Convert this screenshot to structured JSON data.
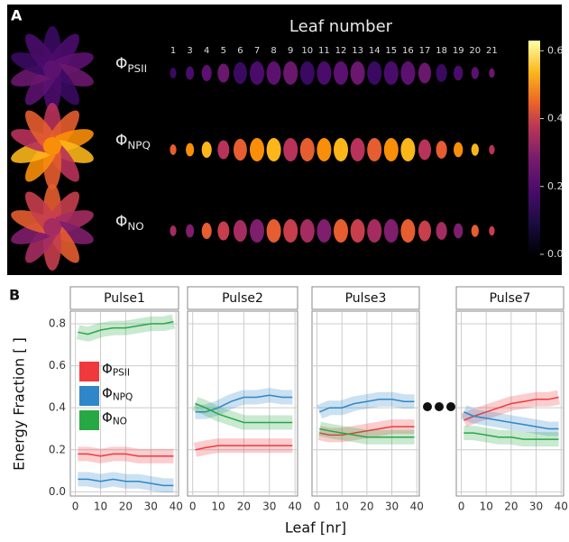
{
  "figure": {
    "label": "A",
    "title": "Leaf number",
    "leaf_numbers": [
      1,
      3,
      4,
      5,
      6,
      7,
      8,
      9,
      10,
      11,
      12,
      13,
      14,
      15,
      16,
      17,
      18,
      19,
      20,
      21
    ],
    "rows": [
      {
        "name": "Φ",
        "subscript": "PSII"
      },
      {
        "name": "Φ",
        "subscript": "NPQ"
      },
      {
        "name": "Φ",
        "subscript": "NO"
      }
    ],
    "colorbar": {
      "lim": [
        0,
        0.63
      ],
      "ticks": [
        {
          "value": 0,
          "label": "0.0"
        },
        0.2,
        0.4,
        0.6
      ]
    }
  },
  "panel_b": {
    "label": "B"
  },
  "chart_data": [
    {
      "type": "line",
      "title": "Pulse1",
      "ylabel": "Energy Fraction [ ]",
      "xlabel": "Leaf [nr]",
      "x": [
        1,
        5,
        10,
        15,
        20,
        25,
        30,
        35,
        39
      ],
      "xlim": [
        -2,
        41
      ],
      "xticks": [
        0,
        10,
        20,
        30,
        40
      ],
      "ylim": [
        -0.02,
        0.86
      ],
      "yticks": [
        {
          "value": 0,
          "label": "0.0"
        },
        0.2,
        0.4,
        0.6,
        0.8
      ],
      "grid": true,
      "series": [
        {
          "name": "Φ",
          "subscript": "PSII",
          "color": "#f0393c",
          "values": [
            0.18,
            0.18,
            0.17,
            0.18,
            0.18,
            0.17,
            0.17,
            0.17,
            0.17
          ]
        },
        {
          "name": "Φ",
          "subscript": "NPQ",
          "color": "#2f86c8",
          "values": [
            0.06,
            0.06,
            0.05,
            0.06,
            0.05,
            0.05,
            0.04,
            0.03,
            0.03
          ]
        },
        {
          "name": "Φ",
          "subscript": "NO",
          "color": "#27a844",
          "values": [
            0.76,
            0.75,
            0.77,
            0.78,
            0.78,
            0.79,
            0.8,
            0.8,
            0.81
          ]
        }
      ]
    },
    {
      "type": "line",
      "title": "Pulse2",
      "x": [
        1,
        5,
        10,
        15,
        20,
        25,
        30,
        35,
        39
      ],
      "xlim": [
        -2,
        41
      ],
      "xticks": [
        0,
        10,
        20,
        30,
        40
      ],
      "ylim": [
        -0.02,
        0.86
      ],
      "grid": true,
      "series": [
        {
          "color": "#f0393c",
          "values": [
            0.2,
            0.21,
            0.22,
            0.22,
            0.22,
            0.22,
            0.22,
            0.22,
            0.22
          ]
        },
        {
          "color": "#2f86c8",
          "values": [
            0.38,
            0.38,
            0.4,
            0.43,
            0.45,
            0.45,
            0.46,
            0.45,
            0.45
          ]
        },
        {
          "color": "#27a844",
          "values": [
            0.42,
            0.4,
            0.37,
            0.35,
            0.33,
            0.33,
            0.33,
            0.33,
            0.33
          ]
        }
      ]
    },
    {
      "type": "line",
      "title": "Pulse3",
      "x": [
        1,
        5,
        10,
        15,
        20,
        25,
        30,
        35,
        39
      ],
      "xlim": [
        -2,
        41
      ],
      "xticks": [
        0,
        10,
        20,
        30,
        40
      ],
      "ylim": [
        -0.02,
        0.86
      ],
      "grid": true,
      "series": [
        {
          "color": "#f0393c",
          "values": [
            0.28,
            0.27,
            0.27,
            0.28,
            0.29,
            0.3,
            0.31,
            0.31,
            0.31
          ]
        },
        {
          "color": "#2f86c8",
          "values": [
            0.38,
            0.4,
            0.4,
            0.42,
            0.43,
            0.44,
            0.44,
            0.43,
            0.43
          ]
        },
        {
          "color": "#27a844",
          "values": [
            0.3,
            0.29,
            0.28,
            0.27,
            0.26,
            0.26,
            0.26,
            0.26,
            0.26
          ]
        }
      ]
    },
    {
      "type": "line",
      "title": "Pulse7",
      "x": [
        1,
        5,
        10,
        15,
        20,
        25,
        30,
        35,
        39
      ],
      "xlim": [
        -2,
        41
      ],
      "xticks": [
        0,
        10,
        20,
        30,
        40
      ],
      "ylim": [
        -0.02,
        0.86
      ],
      "grid": true,
      "series": [
        {
          "color": "#f0393c",
          "values": [
            0.34,
            0.36,
            0.38,
            0.4,
            0.42,
            0.43,
            0.44,
            0.44,
            0.45
          ]
        },
        {
          "color": "#2f86c8",
          "values": [
            0.38,
            0.36,
            0.35,
            0.34,
            0.33,
            0.32,
            0.31,
            0.3,
            0.3
          ]
        },
        {
          "color": "#27a844",
          "values": [
            0.28,
            0.28,
            0.27,
            0.26,
            0.26,
            0.25,
            0.25,
            0.25,
            0.25
          ]
        }
      ]
    }
  ]
}
